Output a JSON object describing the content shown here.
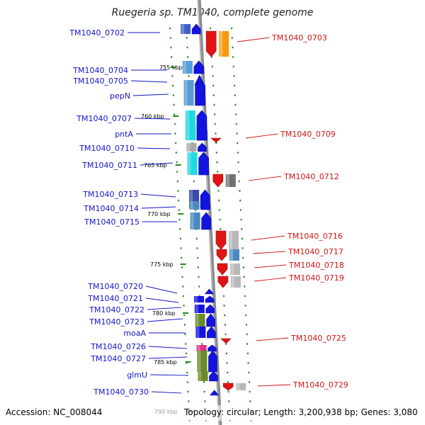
{
  "title": "Ruegeria sp. TM1040, complete genome",
  "footer": {
    "accession": "Accession: NC_008044",
    "topology": "Topology: circular; Length: 3,200,938 bp; Genes: 3,080"
  },
  "colors": {
    "forward_label": "#1414c8",
    "reverse_label": "#d21414",
    "backbone": "#8c8c8c",
    "tick": "#1f8a1f"
  },
  "kbp_ticks": [
    {
      "label": "755 kbp"
    },
    {
      "label": "760 kbp"
    },
    {
      "label": "765 kbp"
    },
    {
      "label": "770 kbp"
    },
    {
      "label": "775 kbp"
    },
    {
      "label": "780 kbp"
    },
    {
      "label": "785 kbp"
    },
    {
      "label": "790 kbp"
    }
  ],
  "left_labels": [
    {
      "text": "TM1040_0702",
      "color": "#1414c8"
    },
    {
      "text": "TM1040_0704",
      "color": "#1414c8"
    },
    {
      "text": "TM1040_0705",
      "color": "#1414c8"
    },
    {
      "text": "pepN",
      "color": "#1414c8"
    },
    {
      "text": "TM1040_0707",
      "color": "#1414c8"
    },
    {
      "text": "pntA",
      "color": "#1414c8"
    },
    {
      "text": "TM1040_0710",
      "color": "#1414c8"
    },
    {
      "text": "TM1040_0711",
      "color": "#1414c8"
    },
    {
      "text": "TM1040_0713",
      "color": "#1414c8"
    },
    {
      "text": "TM1040_0714",
      "color": "#1414c8"
    },
    {
      "text": "TM1040_0715",
      "color": "#1414c8"
    },
    {
      "text": "TM1040_0720",
      "color": "#1414c8"
    },
    {
      "text": "TM1040_0721",
      "color": "#1414c8"
    },
    {
      "text": "TM1040_0722",
      "color": "#1414c8"
    },
    {
      "text": "TM1040_0723",
      "color": "#1414c8"
    },
    {
      "text": "moaA",
      "color": "#1414c8"
    },
    {
      "text": "TM1040_0726",
      "color": "#1414c8"
    },
    {
      "text": "TM1040_0727",
      "color": "#1414c8"
    },
    {
      "text": "glmU",
      "color": "#1414c8"
    },
    {
      "text": "TM1040_0730",
      "color": "#1414c8"
    }
  ],
  "right_labels": [
    {
      "text": "TM1040_0703",
      "color": "#d21414"
    },
    {
      "text": "TM1040_0709",
      "color": "#d21414"
    },
    {
      "text": "TM1040_0712",
      "color": "#d21414"
    },
    {
      "text": "TM1040_0716",
      "color": "#d21414"
    },
    {
      "text": "TM1040_0717",
      "color": "#d21414"
    },
    {
      "text": "TM1040_0718",
      "color": "#d21414"
    },
    {
      "text": "TM1040_0719",
      "color": "#d21414"
    },
    {
      "text": "TM1040_0725",
      "color": "#d21414"
    },
    {
      "text": "TM1040_0729",
      "color": "#d21414"
    }
  ],
  "forward_genes": [
    {
      "name": "TM1040_0702",
      "cog": "#4060c8"
    },
    {
      "name": "TM1040_0704",
      "cog": "#55a0d8"
    },
    {
      "name": "TM1040_0705",
      "cog": "#4a90c8"
    },
    {
      "name": "pepN",
      "cog": "#5a9ad0"
    },
    {
      "name": "TM1040_0707",
      "cog": "#22d8e0"
    },
    {
      "name": "pntA",
      "cog": "#22d8e0"
    },
    {
      "name": "TM1040_0710",
      "cog": "#aaaaaa"
    },
    {
      "name": "TM1040_0711",
      "cog": "#22d8e0"
    },
    {
      "name": "TM1040_0713",
      "cog": "#3a4aa8"
    },
    {
      "name": "TM1040_0714",
      "cog": "#4a88c0"
    },
    {
      "name": "TM1040_0715",
      "cog": "#4a88c0"
    },
    {
      "name": "TM1040_0720",
      "cog": "#1414e0"
    },
    {
      "name": "TM1040_0721",
      "cog": "#1414e0"
    },
    {
      "name": "TM1040_0722",
      "cog": "#1414e0"
    },
    {
      "name": "TM1040_0723",
      "cog": "#6b8a2a"
    },
    {
      "name": "moaA",
      "cog": "#1414e0"
    },
    {
      "name": "TM1040_0726",
      "cog": "#e0308a"
    },
    {
      "name": "TM1040_0727",
      "cog": "#6b8a2a"
    },
    {
      "name": "glmU",
      "cog": "#6b8a2a"
    },
    {
      "name": "TM1040_0730",
      "cog": "#1414e0"
    }
  ],
  "reverse_genes": [
    {
      "name": "TM1040_0703",
      "cog": "#f59a10"
    },
    {
      "name": "TM1040_0709",
      "cog": "#e01414"
    },
    {
      "name": "TM1040_0712",
      "cog": "#707070"
    },
    {
      "name": "TM1040_0716",
      "cog": "#b8b8b8"
    },
    {
      "name": "TM1040_0717",
      "cog": "#4a88c0"
    },
    {
      "name": "TM1040_0718",
      "cog": "#b8b8b8"
    },
    {
      "name": "TM1040_0719",
      "cog": "#b8b8b8"
    },
    {
      "name": "TM1040_0725",
      "cog": "#e01414"
    },
    {
      "name": "TM1040_0729",
      "cog": "#b8b8b8"
    }
  ]
}
